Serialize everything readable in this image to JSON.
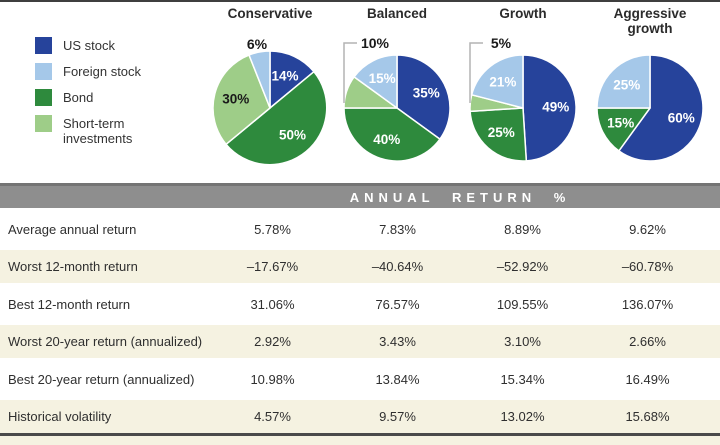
{
  "legend": {
    "items": [
      {
        "label": "US stock",
        "color": "#26439b"
      },
      {
        "label": "Foreign stock",
        "color": "#a5c8e9"
      },
      {
        "label": "Bond",
        "color": "#2e8a3d"
      },
      {
        "label": "Short-term investments",
        "color": "#9ecd88"
      }
    ]
  },
  "chart_data": [
    {
      "type": "pie",
      "title": "Conservative",
      "slices": [
        {
          "label": "US stock",
          "value": 14,
          "color": "#26439b",
          "label_color": "#ffffff",
          "label_pos": "inside"
        },
        {
          "label": "Bond",
          "value": 50,
          "color": "#2e8a3d",
          "label_color": "#ffffff",
          "label_pos": "inside"
        },
        {
          "label": "Short-term investments",
          "value": 30,
          "color": "#9ecd88",
          "label_color": "#1a1a1a",
          "label_pos": "inside"
        },
        {
          "label": "Foreign stock",
          "value": 6,
          "color": "#a5c8e9",
          "label_color": "#1a1a1a",
          "label_pos": "outside"
        }
      ]
    },
    {
      "type": "pie",
      "title": "Balanced",
      "slices": [
        {
          "label": "US stock",
          "value": 35,
          "color": "#26439b",
          "label_color": "#ffffff",
          "label_pos": "inside"
        },
        {
          "label": "Bond",
          "value": 40,
          "color": "#2e8a3d",
          "label_color": "#ffffff",
          "label_pos": "inside"
        },
        {
          "label": "Short-term investments",
          "value": 10,
          "color": "#9ecd88",
          "label_color": "#1a1a1a",
          "label_pos": "outside"
        },
        {
          "label": "Foreign stock",
          "value": 15,
          "color": "#a5c8e9",
          "label_color": "#ffffff",
          "label_pos": "inside"
        }
      ]
    },
    {
      "type": "pie",
      "title": "Growth",
      "slices": [
        {
          "label": "US stock",
          "value": 49,
          "color": "#26439b",
          "label_color": "#ffffff",
          "label_pos": "inside"
        },
        {
          "label": "Bond",
          "value": 25,
          "color": "#2e8a3d",
          "label_color": "#ffffff",
          "label_pos": "inside"
        },
        {
          "label": "Short-term investments",
          "value": 5,
          "color": "#9ecd88",
          "label_color": "#1a1a1a",
          "label_pos": "outside"
        },
        {
          "label": "Foreign stock",
          "value": 21,
          "color": "#a5c8e9",
          "label_color": "#ffffff",
          "label_pos": "inside"
        }
      ]
    },
    {
      "type": "pie",
      "title": "Aggressive\ngrowth",
      "slices": [
        {
          "label": "US stock",
          "value": 60,
          "color": "#26439b",
          "label_color": "#ffffff",
          "label_pos": "inside"
        },
        {
          "label": "Bond",
          "value": 15,
          "color": "#2e8a3d",
          "label_color": "#ffffff",
          "label_pos": "inside"
        },
        {
          "label": "Foreign stock",
          "value": 25,
          "color": "#a5c8e9",
          "label_color": "#ffffff",
          "label_pos": "inside"
        }
      ]
    }
  ],
  "table": {
    "header": "ANNUAL RETURN %",
    "rows": [
      {
        "label": "Average annual return",
        "values": [
          "5.78%",
          "7.83%",
          "8.89%",
          "9.62%"
        ]
      },
      {
        "label": "Worst 12-month return",
        "values": [
          "–17.67%",
          "–40.64%",
          "–52.92%",
          "–60.78%"
        ]
      },
      {
        "label": "Best 12-month return",
        "values": [
          "31.06%",
          "76.57%",
          "109.55%",
          "136.07%"
        ]
      },
      {
        "label": "Worst 20-year return (annualized)",
        "values": [
          "2.92%",
          "3.43%",
          "3.10%",
          "2.66%"
        ]
      },
      {
        "label": "Best 20-year return (annualized)",
        "values": [
          "10.98%",
          "13.84%",
          "15.34%",
          "16.49%"
        ]
      },
      {
        "label": "Historical volatility",
        "values": [
          "4.57%",
          "9.57%",
          "13.02%",
          "15.68%"
        ]
      }
    ]
  },
  "colors": {
    "header_bar": "#8e8e8e",
    "stripe_beige": "#f5f2e1",
    "rule_dark": "#3f3f3f"
  }
}
